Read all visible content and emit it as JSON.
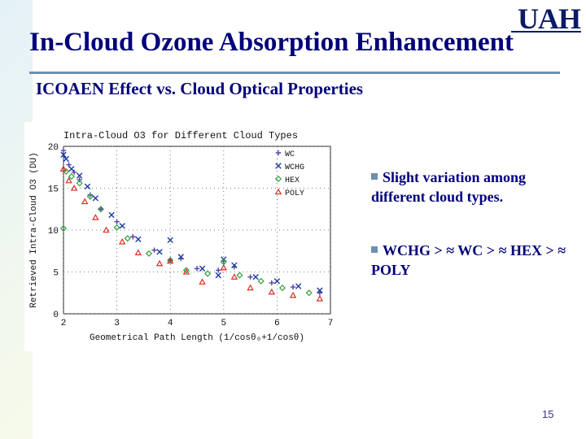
{
  "slide": {
    "title": "In-Cloud Ozone Absorption Enhancement",
    "subtitle": "ICOAEN Effect vs. Cloud Optical Properties",
    "logo_text": "UAH",
    "page_number": "15"
  },
  "bullets": [
    {
      "text": "Slight variation among different cloud types."
    },
    {
      "text": "WCHG > ≈ WC > ≈ HEX > ≈ POLY"
    }
  ],
  "colors": {
    "title": "#00007a",
    "WC": "#5a3fa8",
    "WCHG": "#1a3aa0",
    "HEX": "#2e9e3a",
    "POLY": "#d83024"
  },
  "chart_data": {
    "type": "scatter",
    "title": "Intra-Cloud O3 for Different Cloud Types",
    "xlabel": "Geometrical Path Length (1/cosθ₀+1/cosθ)",
    "ylabel": "Retrieved Intra-Cloud O3 (DU)",
    "xlim": [
      2,
      7
    ],
    "ylim": [
      0,
      20
    ],
    "xticks": [
      "2",
      "3",
      "4",
      "5",
      "6",
      "7"
    ],
    "yticks": [
      "0",
      "5",
      "10",
      "15",
      "20"
    ],
    "legend_position": "top-right",
    "series": [
      {
        "name": "WC",
        "marker": "+",
        "x": [
          2.0,
          2.1,
          2.2,
          2.3,
          2.5,
          2.7,
          3.0,
          3.3,
          3.7,
          4.0,
          4.2,
          4.5,
          4.9,
          5.0,
          5.2,
          5.5,
          5.9,
          6.3,
          6.8
        ],
        "y": [
          19.5,
          17.8,
          16.9,
          16.0,
          14.2,
          12.5,
          11.0,
          9.2,
          7.6,
          6.4,
          6.6,
          5.4,
          5.2,
          6.3,
          5.6,
          4.4,
          3.7,
          3.2,
          2.5
        ]
      },
      {
        "name": "WCHG",
        "marker": "x",
        "x": [
          2.0,
          2.05,
          2.15,
          2.3,
          2.45,
          2.6,
          2.9,
          3.1,
          3.4,
          3.8,
          4.0,
          4.2,
          4.6,
          4.9,
          5.0,
          5.2,
          5.6,
          6.0,
          6.4,
          6.8
        ],
        "y": [
          19.0,
          18.5,
          17.3,
          16.5,
          15.2,
          13.8,
          11.8,
          10.5,
          8.9,
          7.4,
          8.8,
          6.8,
          5.4,
          4.6,
          6.5,
          5.8,
          4.4,
          3.9,
          3.3,
          2.8
        ]
      },
      {
        "name": "HEX",
        "marker": "diamond",
        "x": [
          2.0,
          2.05,
          2.15,
          2.3,
          2.5,
          2.7,
          3.0,
          3.2,
          3.6,
          4.0,
          4.3,
          4.7,
          5.0,
          5.3,
          5.7,
          6.1,
          6.6
        ],
        "y": [
          10.2,
          17.0,
          16.4,
          15.6,
          14.0,
          12.5,
          10.3,
          9.0,
          7.2,
          6.4,
          5.2,
          4.8,
          6.2,
          4.6,
          3.9,
          3.1,
          2.5
        ]
      },
      {
        "name": "POLY",
        "marker": "triangle",
        "x": [
          2.0,
          2.1,
          2.2,
          2.4,
          2.6,
          2.8,
          3.1,
          3.4,
          3.8,
          4.0,
          4.3,
          4.6,
          5.0,
          5.2,
          5.5,
          5.9,
          6.3,
          6.8
        ],
        "y": [
          17.3,
          15.9,
          15.0,
          13.4,
          11.5,
          10.0,
          8.6,
          7.3,
          6.0,
          6.3,
          5.0,
          3.8,
          5.5,
          4.4,
          3.1,
          2.6,
          2.2,
          1.8
        ]
      }
    ]
  }
}
